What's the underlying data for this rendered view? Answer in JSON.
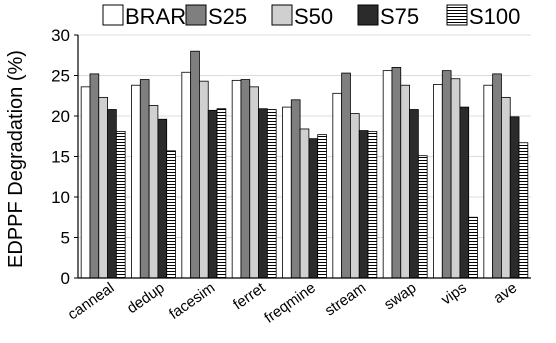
{
  "chart_data": {
    "type": "bar",
    "title": "",
    "xlabel": "",
    "ylabel": "EDPPF Degradation (%)",
    "ylim": [
      0,
      30
    ],
    "yticks": [
      0,
      5,
      10,
      15,
      20,
      25,
      30
    ],
    "grid": true,
    "legend_position": "top",
    "categories": [
      "canneal",
      "dedup",
      "facesim",
      "ferret",
      "freqmine",
      "stream",
      "swap",
      "vips",
      "ave"
    ],
    "series": [
      {
        "name": "BRAR",
        "fill": "#ffffff",
        "pattern": "none",
        "values": [
          23.6,
          23.8,
          25.4,
          24.4,
          21.1,
          22.8,
          25.6,
          23.9,
          23.8
        ]
      },
      {
        "name": "S25",
        "fill": "#7f7f7f",
        "pattern": "none",
        "values": [
          25.2,
          24.5,
          28.0,
          24.5,
          22.0,
          25.3,
          26.0,
          25.6,
          25.2
        ]
      },
      {
        "name": "S50",
        "fill": "#d0d0d0",
        "pattern": "none",
        "values": [
          22.3,
          21.3,
          24.3,
          23.6,
          18.4,
          20.3,
          23.8,
          24.6,
          22.3
        ]
      },
      {
        "name": "S75",
        "fill": "#2b2b2b",
        "pattern": "none",
        "values": [
          20.8,
          19.6,
          20.7,
          20.9,
          17.2,
          18.2,
          20.8,
          21.1,
          19.9
        ]
      },
      {
        "name": "S100",
        "fill": "#ffffff",
        "pattern": "horizontal-lines",
        "values": [
          18.1,
          15.7,
          20.9,
          20.8,
          17.7,
          18.1,
          15.1,
          7.5,
          16.7
        ]
      }
    ]
  }
}
